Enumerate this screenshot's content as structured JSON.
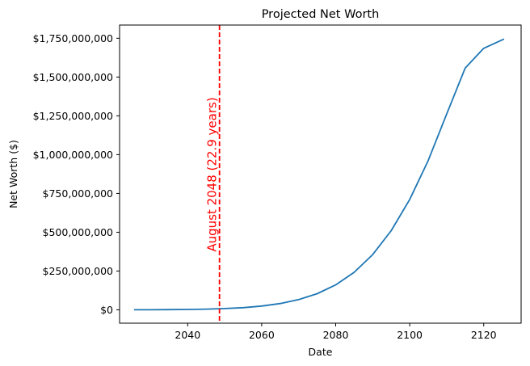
{
  "chart_data": {
    "type": "line",
    "title": "Projected Net Worth",
    "xlabel": "Date",
    "ylabel": "Net Worth ($)",
    "xlim": [
      2021.6,
      2130.1
    ],
    "ylim": [
      -86000000,
      1835000000
    ],
    "x_ticks": [
      2040,
      2060,
      2080,
      2100,
      2120
    ],
    "x_tick_labels": [
      "2040",
      "2060",
      "2080",
      "2100",
      "2120"
    ],
    "y_ticks": [
      0,
      250000000,
      500000000,
      750000000,
      1000000000,
      1250000000,
      1500000000,
      1750000000
    ],
    "y_tick_labels": [
      "$0",
      "$250,000,000",
      "$500,000,000",
      "$750,000,000",
      "$1,000,000,000",
      "$1,250,000,000",
      "$1,500,000,000",
      "$1,750,000,000"
    ],
    "grid": false,
    "series": [
      {
        "name": "Net Worth",
        "color": "#1f77b4",
        "x": [
          2025.5,
          2030,
          2035,
          2040,
          2045,
          2050,
          2055,
          2060,
          2065,
          2070,
          2075,
          2080,
          2085,
          2090,
          2095,
          2100,
          2105,
          2110,
          2115,
          2120,
          2125.5
        ],
        "y": [
          330000,
          620000,
          1230000,
          2340000,
          4400000,
          8000000,
          14200000,
          24300000,
          40500000,
          65800000,
          104000000,
          160600000,
          242000000,
          355800000,
          510000000,
          711000000,
          962000000,
          1262000000,
          1558000000,
          1685000000,
          1745000000
        ]
      }
    ],
    "annotations": [
      {
        "type": "vline",
        "x": 2048.6,
        "color": "#ff0000",
        "style": "dashed",
        "text": "August 2048 (22.9 years)"
      }
    ]
  }
}
